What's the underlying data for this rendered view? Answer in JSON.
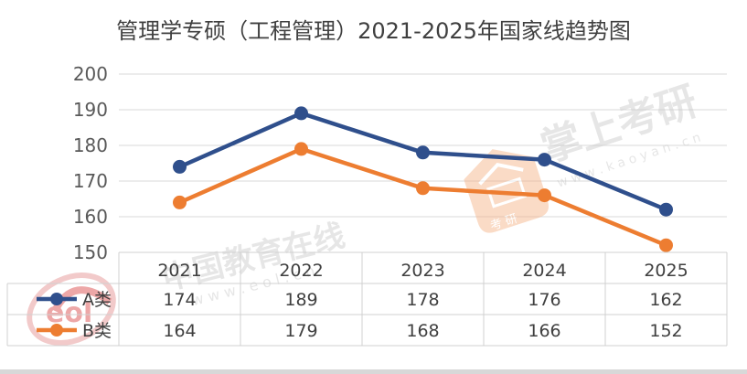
{
  "chart_data": {
    "type": "line",
    "title": "管理学专硕（工程管理）2021-2025年国家线趋势图",
    "categories": [
      "2021",
      "2022",
      "2023",
      "2024",
      "2025"
    ],
    "series": [
      {
        "name": "A类",
        "values": [
          174,
          189,
          178,
          176,
          162
        ],
        "color": "#2f4f8c"
      },
      {
        "name": "B类",
        "values": [
          164,
          179,
          168,
          166,
          152
        ],
        "color": "#ed7d31"
      }
    ],
    "ylim": [
      150,
      200
    ],
    "yticks": [
      150,
      160,
      170,
      180,
      190,
      200
    ],
    "grid": true,
    "legend": "data-table"
  },
  "watermarks": {
    "kaoyan": {
      "main": "掌上考研",
      "url": "w w w . k a o y a n . c n",
      "badge": "考 研"
    },
    "eol": {
      "main": "中国教育在线",
      "url": "w w w . e o l . c n",
      "logo": "eol"
    }
  }
}
